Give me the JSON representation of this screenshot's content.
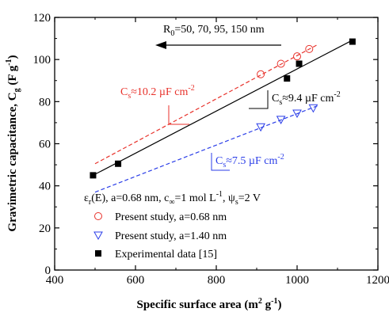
{
  "chart_data": {
    "type": "scatter",
    "xlabel": "Specific surface area (m² g⁻¹)",
    "ylabel": "Gravimetric capacitance, Cg (F g⁻¹)",
    "xlim": [
      400,
      1200
    ],
    "ylim": [
      0,
      120
    ],
    "xticks": [
      "400",
      "600",
      "800",
      "1000",
      "1200"
    ],
    "yticks": [
      "0",
      "20",
      "40",
      "60",
      "80",
      "100",
      "120"
    ],
    "grid": false,
    "legend_position": "bottom-right",
    "series": [
      {
        "name": "Present study, a=0.68 nm",
        "marker": "circle",
        "color": "#e8322b",
        "x": [
          910,
          960,
          1000,
          1030
        ],
        "y": [
          93,
          98,
          101.5,
          105
        ]
      },
      {
        "name": "Present study, a=1.40 nm",
        "marker": "triangle-down",
        "color": "#2b3ee8",
        "x": [
          910,
          960,
          1000,
          1040
        ],
        "y": [
          68,
          71.5,
          74.5,
          77
        ]
      },
      {
        "name": "Experimental data [15]",
        "marker": "square",
        "color": "#000000",
        "x": [
          495,
          557,
          975,
          1005,
          1137
        ],
        "y": [
          45,
          50.5,
          91,
          98,
          108.5
        ]
      }
    ],
    "fit_lines": [
      {
        "label": "Cs≈10.2 µF cm⁻²",
        "color": "#e8322b",
        "dash": "dashed",
        "x": [
          500,
          1050
        ],
        "y": [
          50.5,
          107
        ]
      },
      {
        "label": "Cs≈9.4 µF cm⁻²",
        "color": "#000000",
        "dash": "solid",
        "x": [
          495,
          1140
        ],
        "y": [
          45,
          109.5
        ]
      },
      {
        "label": "Cs≈7.5 µF cm⁻²",
        "color": "#2b3ee8",
        "dash": "dashed",
        "x": [
          500,
          1050
        ],
        "y": [
          37,
          78
        ]
      }
    ],
    "annotations": {
      "r0": "R0=50, 70, 95, 150 nm",
      "cs_red": "Cs≈10.2 µF cm⁻²",
      "cs_black": "Cs≈9.4 µF cm⁻²",
      "cs_blue": "Cs≈7.5 µF cm⁻²",
      "conditions": "εr(E), a=0.68 nm, c∞=1 mol L⁻¹, ψs=2 V"
    }
  }
}
